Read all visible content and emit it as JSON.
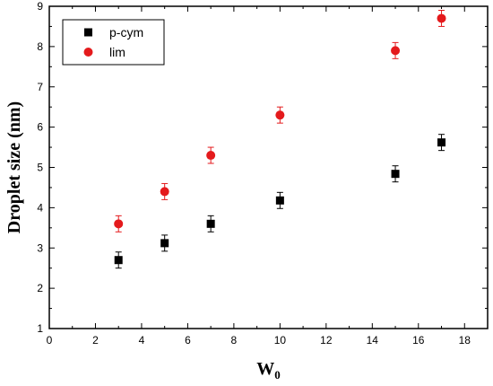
{
  "chart_data": {
    "type": "scatter",
    "xlabel": "W",
    "xlabel_sub": "0",
    "ylabel": "Droplet size (nm)",
    "xlim": [
      0,
      19
    ],
    "ylim": [
      1,
      9
    ],
    "xticks": [
      0,
      2,
      4,
      6,
      8,
      10,
      12,
      14,
      16,
      18
    ],
    "yticks": [
      1,
      2,
      3,
      4,
      5,
      6,
      7,
      8,
      9
    ],
    "grid": false,
    "legend_position": "top-left",
    "series": [
      {
        "name": "p-cym",
        "marker": "square",
        "color": "#000000",
        "points": [
          {
            "x": 3,
            "y": 2.7,
            "err": 0.2
          },
          {
            "x": 5,
            "y": 3.12,
            "err": 0.2
          },
          {
            "x": 7,
            "y": 3.6,
            "err": 0.2
          },
          {
            "x": 10,
            "y": 4.18,
            "err": 0.2
          },
          {
            "x": 15,
            "y": 4.84,
            "err": 0.2
          },
          {
            "x": 17,
            "y": 5.62,
            "err": 0.2
          }
        ]
      },
      {
        "name": "lim",
        "marker": "circle",
        "color": "#e41a1c",
        "points": [
          {
            "x": 3,
            "y": 3.6,
            "err": 0.2
          },
          {
            "x": 5,
            "y": 4.4,
            "err": 0.2
          },
          {
            "x": 7,
            "y": 5.3,
            "err": 0.2
          },
          {
            "x": 10,
            "y": 6.3,
            "err": 0.2
          },
          {
            "x": 15,
            "y": 7.9,
            "err": 0.2
          },
          {
            "x": 17,
            "y": 8.7,
            "err": 0.2
          }
        ]
      }
    ]
  }
}
